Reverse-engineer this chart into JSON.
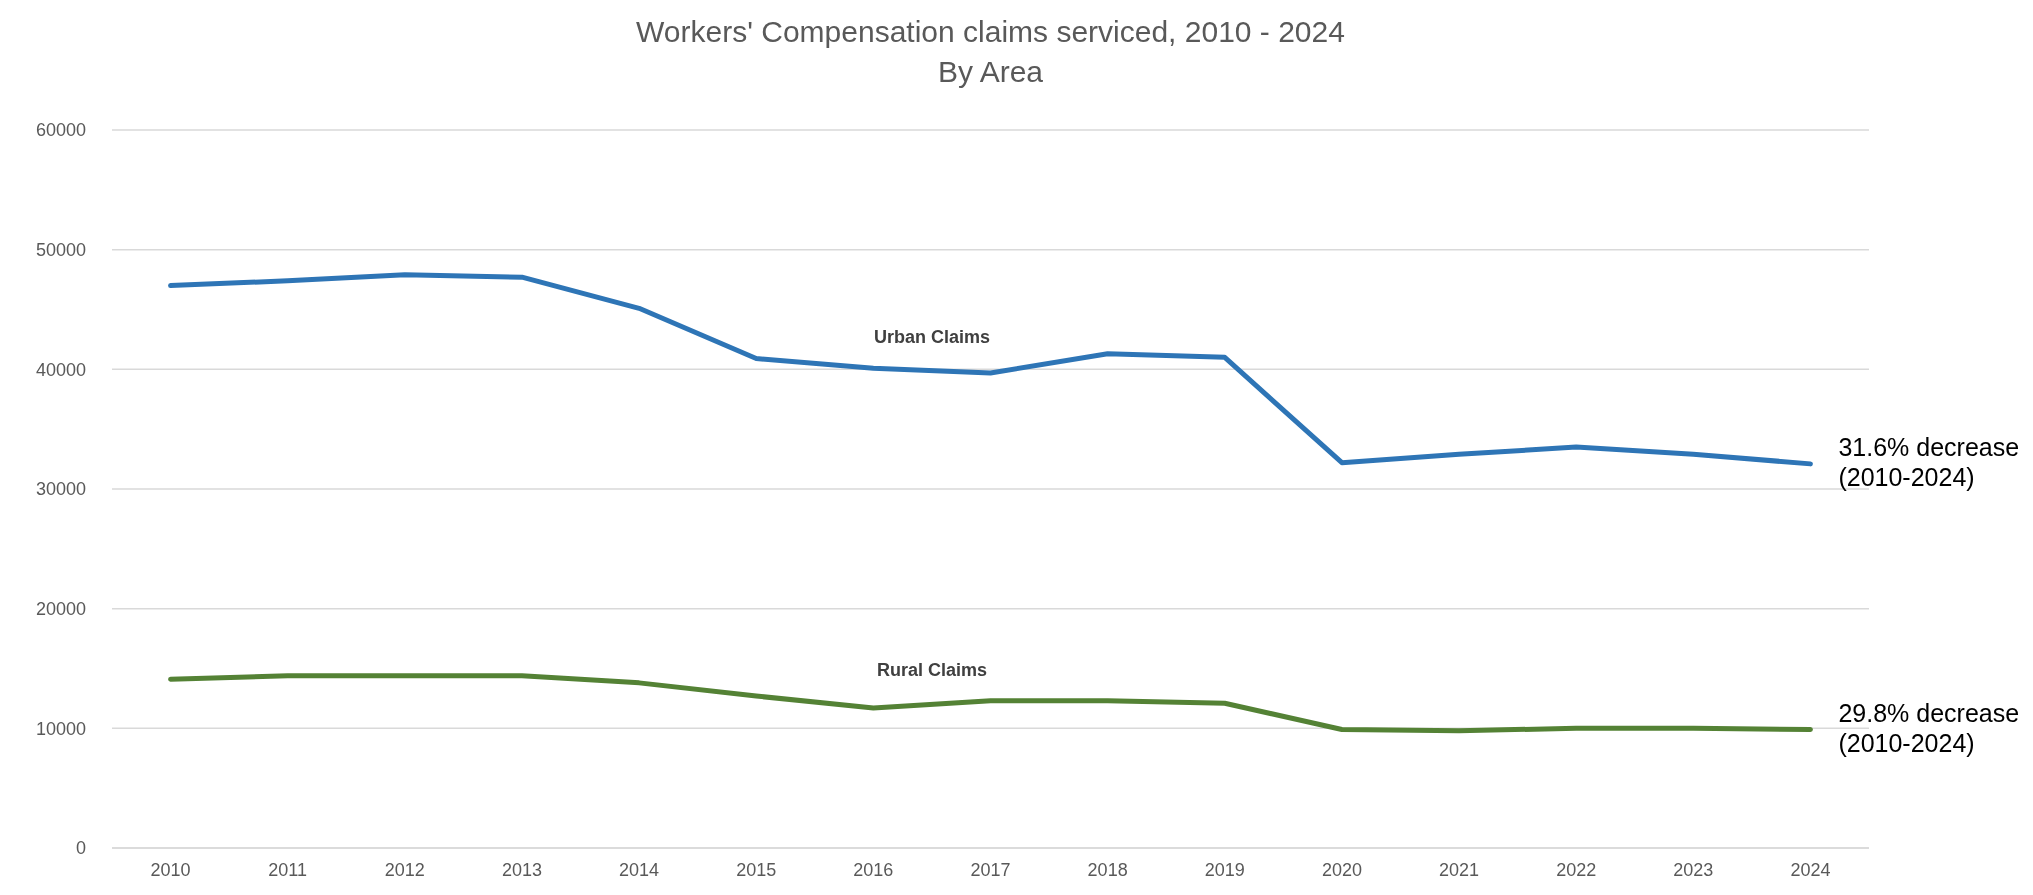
{
  "chart_data": {
    "type": "line",
    "title": "Workers' Compensation claims serviced, 2010 - 2024",
    "subtitle": "By Area",
    "categories": [
      "2010",
      "2011",
      "2012",
      "2013",
      "2014",
      "2015",
      "2016",
      "2017",
      "2018",
      "2019",
      "2020",
      "2021",
      "2022",
      "2023",
      "2024"
    ],
    "series": [
      {
        "name": "Urban Claims",
        "color": "#2e75b6",
        "values": [
          47000,
          47400,
          47900,
          47700,
          45100,
          40900,
          40100,
          39700,
          41300,
          41000,
          32200,
          32900,
          33500,
          32900,
          32100
        ]
      },
      {
        "name": "Rural Claims",
        "color": "#548235",
        "values": [
          14100,
          14400,
          14400,
          14400,
          13800,
          12700,
          11700,
          12300,
          12300,
          12100,
          9900,
          9800,
          10000,
          10000,
          9900
        ]
      }
    ],
    "ylim": [
      0,
      60000
    ],
    "yticks": [
      0,
      10000,
      20000,
      30000,
      40000,
      50000,
      60000
    ],
    "grid": "y",
    "legend": false,
    "marker": "none",
    "line_style": "solid",
    "annotations": [
      {
        "text": "31.6% decrease\n(2010-2024)",
        "x": "2024",
        "y": 32100
      },
      {
        "text": "29.8% decrease\n(2010-2024)",
        "x": "2024",
        "y": 9900
      }
    ]
  }
}
